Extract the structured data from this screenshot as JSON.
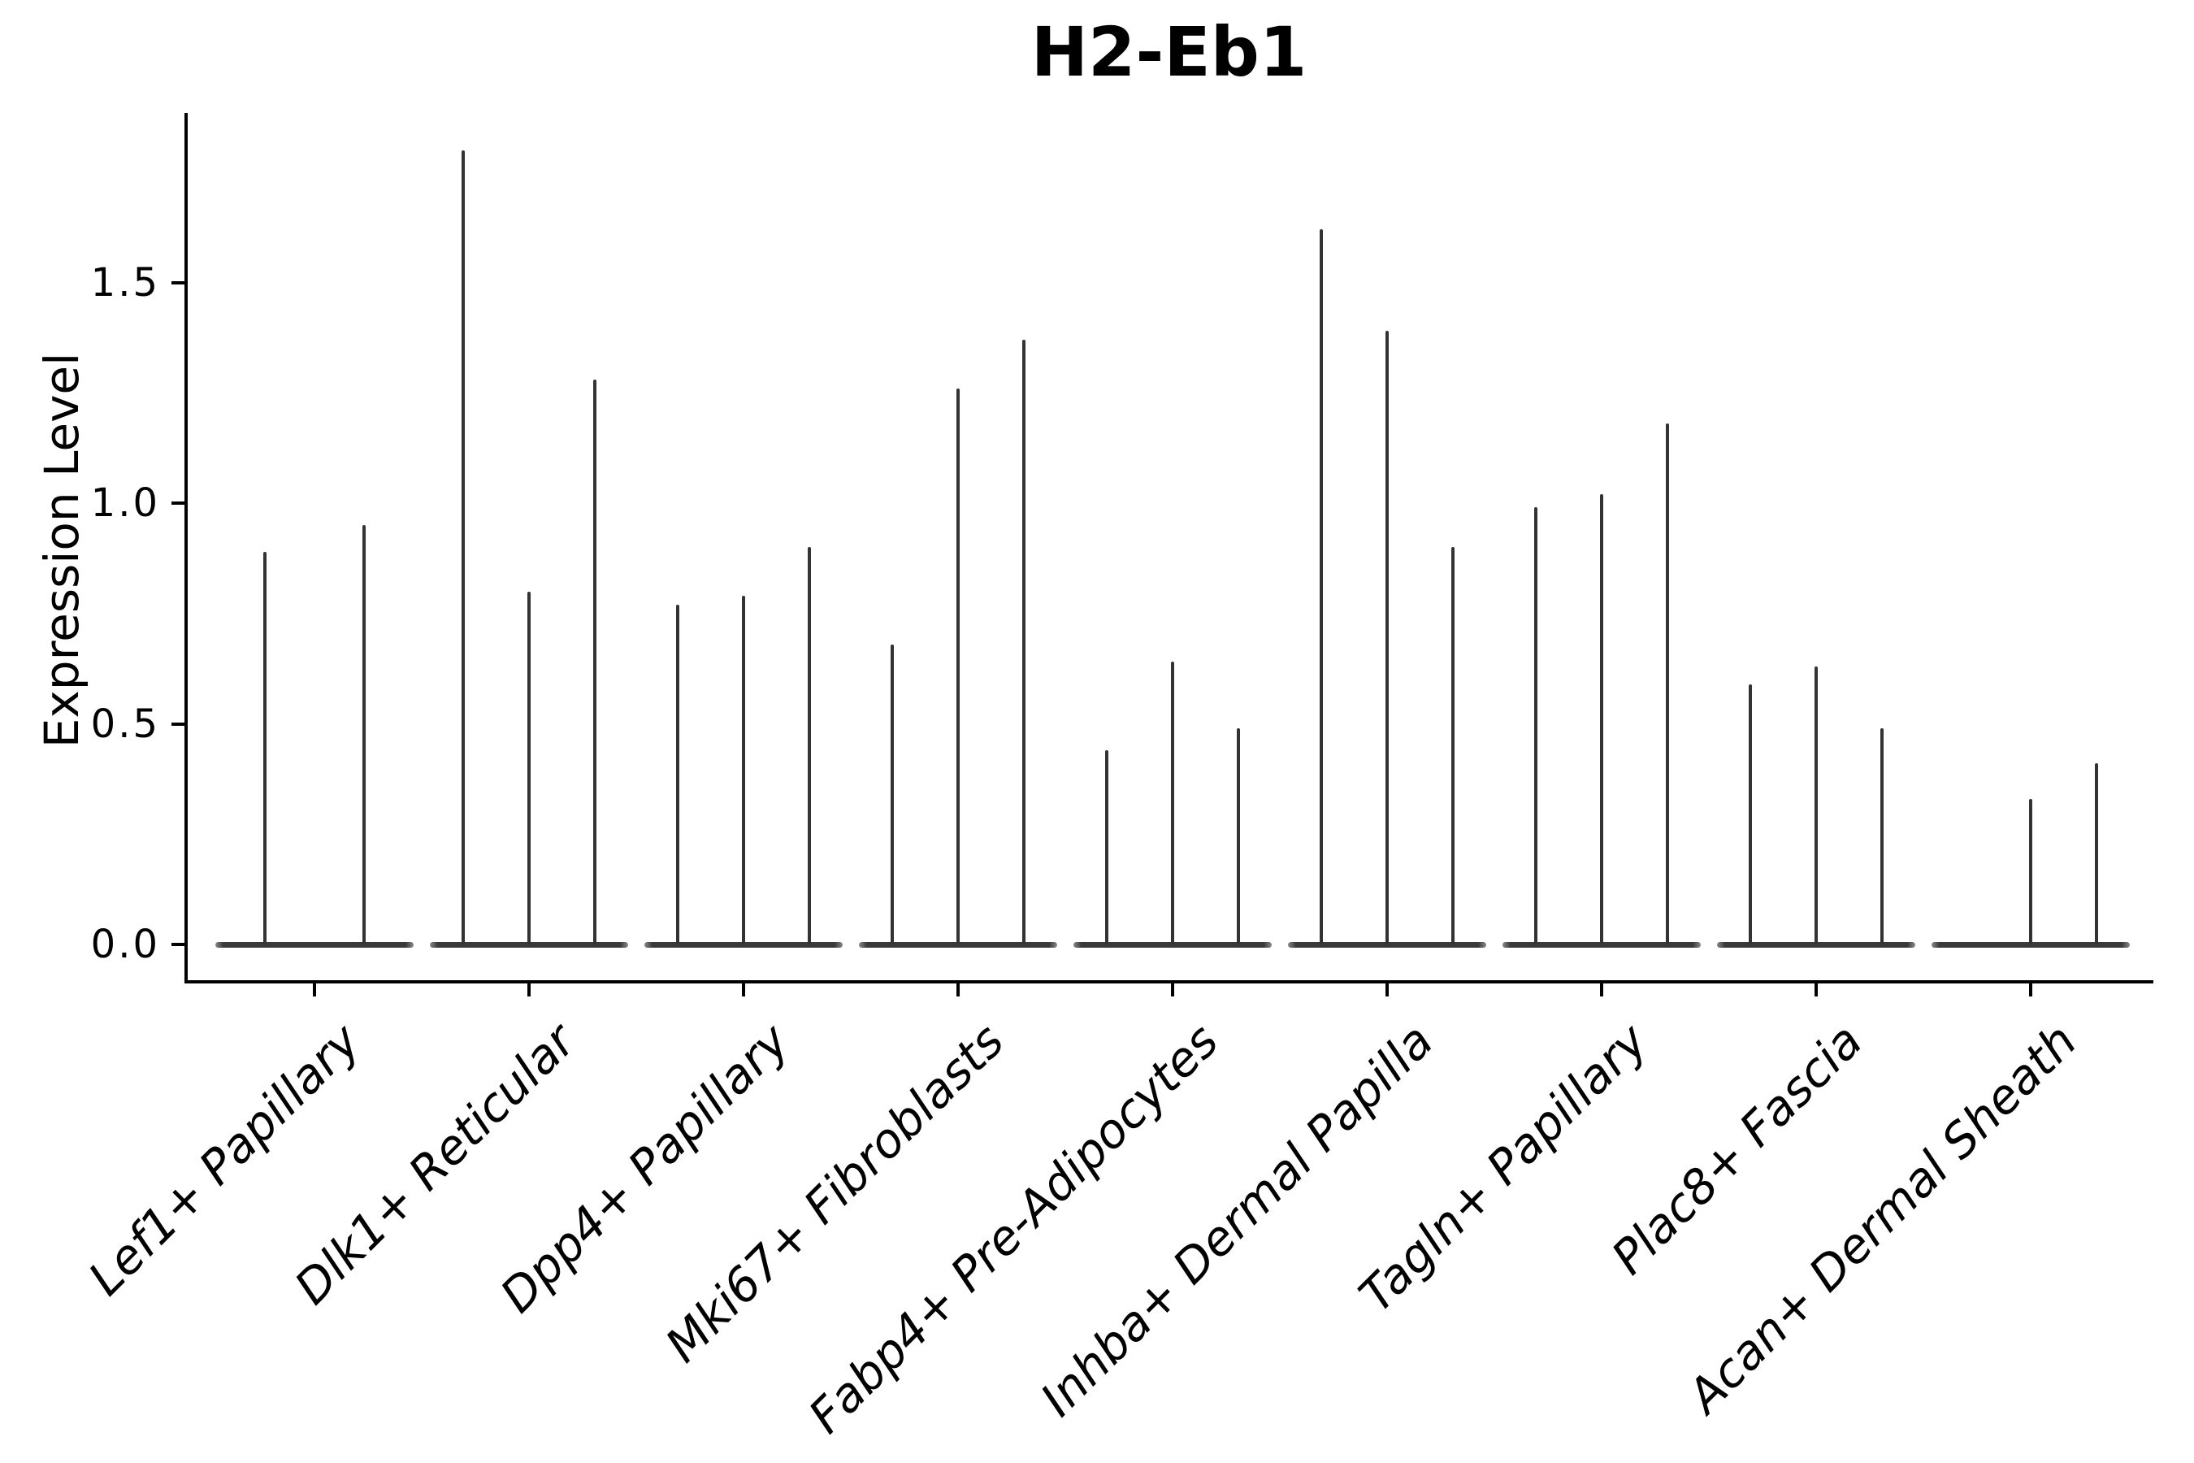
{
  "page": {
    "background": "#ffffff"
  },
  "chart_data": {
    "type": "violin",
    "title": "H2-Eb1",
    "ylabel": "Expression Level",
    "xlabel": "",
    "yticks": [
      "0.0",
      "0.5",
      "1.0",
      "1.5"
    ],
    "ytick_values": [
      0,
      0.5,
      1.0,
      1.5
    ],
    "ylim": [
      -0.09,
      1.89
    ],
    "grid": "off",
    "legend": "none",
    "categories": [
      "Lef1+ Papillary",
      "Dlk1+ Reticular",
      "Dpp4+ Papillary",
      "Mki67+ Fibroblasts",
      "Fabp4+ Pre-Adipocytes",
      "Inhba+ Dermal Papilla",
      "Tagln+ Papillary",
      "Plac8+ Fascia",
      "Acan+ Dermal Sheath"
    ],
    "groups": [
      {
        "category": "Lef1+ Papillary",
        "violin_peaks": [
          0.89,
          0.95
        ]
      },
      {
        "category": "Dlk1+ Reticular",
        "violin_peaks": [
          1.8,
          0.8,
          1.28
        ]
      },
      {
        "category": "Dpp4+ Papillary",
        "violin_peaks": [
          0.77,
          0.79,
          0.9
        ]
      },
      {
        "category": "Mki67+ Fibroblasts",
        "violin_peaks": [
          0.68,
          1.26,
          1.37
        ]
      },
      {
        "category": "Fabp4+ Pre-Adipocytes",
        "violin_peaks": [
          0.44,
          0.64,
          0.49
        ]
      },
      {
        "category": "Inhba+ Dermal Papilla",
        "violin_peaks": [
          1.62,
          1.39,
          0.9
        ]
      },
      {
        "category": "Tagln+ Papillary",
        "violin_peaks": [
          0.99,
          1.02,
          1.18
        ]
      },
      {
        "category": "Plac8+ Fascia",
        "violin_peaks": [
          0.59,
          0.63,
          0.49
        ]
      },
      {
        "category": "Acan+ Dermal Sheath",
        "violin_peaks": [
          0.0,
          0.33,
          0.41
        ]
      }
    ],
    "colors": {
      "spike": "#333333",
      "baseline": "#3a3a3a",
      "axis": "#000000",
      "text": "#000000",
      "background": "#ffffff"
    }
  }
}
